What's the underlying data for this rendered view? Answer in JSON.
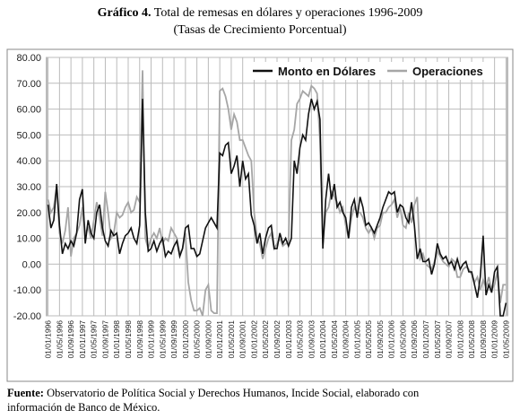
{
  "chart_data": {
    "type": "line",
    "title_prefix": "Gráfico 4.",
    "title": "Total de remesas en dólares y operaciones 1996-2009",
    "subtitle": "(Tasas de Crecimiento Porcentual)",
    "source_label": "Fuente:",
    "source": "Observatorio de Política Social y Derechos Humanos, Incide Social, elaborado con información de Banco de México.",
    "categories": [
      "01/01/1996",
      null,
      null,
      null,
      "01/05/1996",
      null,
      null,
      null,
      "01/09/1996",
      null,
      null,
      null,
      "01/01/1997",
      null,
      null,
      null,
      "01/05/1997",
      null,
      null,
      null,
      "01/09/1997",
      null,
      null,
      null,
      "01/01/1998",
      null,
      null,
      null,
      "01/05/1998",
      null,
      null,
      null,
      "01/09/1998",
      null,
      null,
      null,
      "01/01/1999",
      null,
      null,
      null,
      "01/05/1999",
      null,
      null,
      null,
      "01/09/1999",
      null,
      null,
      null,
      "01/01/2000",
      null,
      null,
      null,
      "01/05/2000",
      null,
      null,
      null,
      "01/09/2000",
      null,
      null,
      null,
      "01/01/2001",
      null,
      null,
      null,
      "01/05/2001",
      null,
      null,
      null,
      "01/09/2001",
      null,
      null,
      null,
      "01/01/2002",
      null,
      null,
      null,
      "01/05/2002",
      null,
      null,
      null,
      "01/09/2002",
      null,
      null,
      null,
      "01/01/2003",
      null,
      null,
      null,
      "01/05/2003",
      null,
      null,
      null,
      "01/09/2003",
      null,
      null,
      null,
      "01/01/2004",
      null,
      null,
      null,
      "01/05/2004",
      null,
      null,
      null,
      "01/09/2004",
      null,
      null,
      null,
      "01/01/2005",
      null,
      null,
      null,
      "01/05/2005",
      null,
      null,
      null,
      "01/09/2005",
      null,
      null,
      null,
      "01/01/2006",
      null,
      null,
      null,
      "01/05/2006",
      null,
      null,
      null,
      "01/09/2006",
      null,
      null,
      null,
      "01/01/2007",
      null,
      null,
      null,
      "01/05/2007",
      null,
      null,
      null,
      "01/09/2007",
      null,
      null,
      null,
      "01/01/2008",
      null,
      null,
      null,
      "01/05/2008",
      null,
      null,
      null,
      "01/09/2008",
      null,
      null,
      null,
      "01/01/2009",
      null,
      null,
      null,
      "01/05/2009"
    ],
    "series": [
      {
        "name": "Monto en Dólares",
        "color": "#111111",
        "values": [
          23,
          14,
          17,
          31,
          15,
          4,
          8,
          6,
          9,
          7,
          12,
          25,
          29,
          8,
          17,
          12,
          10,
          20,
          23,
          14,
          9,
          7,
          13,
          11,
          12,
          4,
          8,
          11,
          12,
          14,
          10,
          8,
          15,
          64,
          20,
          5,
          6,
          9,
          5,
          8,
          10,
          3,
          5,
          4,
          7,
          9,
          3,
          6,
          14,
          15,
          6,
          6,
          3,
          4,
          9,
          14,
          16,
          18,
          16,
          14,
          43,
          42,
          46,
          47,
          35,
          38,
          42,
          30,
          40,
          33,
          35,
          19,
          15,
          8,
          12,
          4,
          10,
          14,
          15,
          6,
          6,
          12,
          8,
          10,
          7,
          10,
          40,
          35,
          45,
          50,
          48,
          58,
          64,
          60,
          63,
          56,
          6,
          25,
          35,
          25,
          31,
          22,
          24,
          20,
          18,
          10,
          22,
          25,
          18,
          26,
          22,
          15,
          16,
          14,
          12,
          15,
          18,
          22,
          25,
          28,
          27,
          28,
          20,
          23,
          22,
          18,
          16,
          24,
          15,
          2,
          6,
          1,
          1,
          2,
          -4,
          0,
          8,
          4,
          2,
          3,
          0,
          1,
          -2,
          2,
          -2,
          0,
          1,
          -3,
          -3,
          -8,
          -13,
          -5,
          11,
          -12,
          -8,
          -11,
          -3,
          -1,
          -20,
          -20,
          -15
        ]
      },
      {
        "name": "Operaciones",
        "color": "#a6a6a6",
        "values": [
          25,
          20,
          22,
          30,
          12,
          8,
          13,
          22,
          3,
          10,
          12,
          15,
          22,
          12,
          14,
          10,
          17,
          24,
          18,
          11,
          28,
          20,
          10,
          12,
          20,
          18,
          19,
          22,
          24,
          20,
          21,
          26,
          24,
          75,
          10,
          6,
          10,
          12,
          10,
          14,
          8,
          10,
          9,
          14,
          12,
          10,
          4,
          6,
          12,
          -7,
          -14,
          -18,
          -18,
          -17,
          -20,
          -10,
          -8,
          -18,
          -19,
          -19,
          67,
          68,
          65,
          60,
          52,
          58,
          55,
          48,
          48,
          45,
          42,
          40,
          20,
          10,
          8,
          2,
          6,
          10,
          12,
          6,
          8,
          10,
          7,
          8,
          8,
          48,
          52,
          62,
          64,
          67,
          66,
          65,
          69,
          68,
          66,
          48,
          8,
          20,
          22,
          28,
          26,
          24,
          20,
          22,
          15,
          10,
          18,
          22,
          20,
          20,
          18,
          14,
          12,
          14,
          10,
          14,
          15,
          20,
          20,
          22,
          23,
          25,
          18,
          22,
          15,
          14,
          20,
          16,
          23,
          26,
          2,
          4,
          0,
          -1,
          -2,
          1,
          5,
          3,
          1,
          0,
          -1,
          2,
          1,
          -5,
          -5,
          -2,
          -1,
          -2,
          -4,
          -7,
          -5,
          -10,
          -6,
          -9,
          -5,
          -10,
          -8,
          -3,
          -15,
          -8,
          -8
        ]
      }
    ],
    "ylim": [
      -20,
      80
    ],
    "yticks": [
      {
        "value": -20,
        "label": "-20.00"
      },
      {
        "value": -10,
        "label": "-10.00"
      },
      {
        "value": 0,
        "label": "0.00"
      },
      {
        "value": 10,
        "label": "10.00"
      },
      {
        "value": 20,
        "label": "20.00"
      },
      {
        "value": 30,
        "label": "30.00"
      },
      {
        "value": 40,
        "label": "40.00"
      },
      {
        "value": 50,
        "label": "50.00"
      },
      {
        "value": 60,
        "label": "60.00"
      },
      {
        "value": 70,
        "label": "70.00"
      },
      {
        "value": 80,
        "label": "80.00"
      }
    ],
    "grid": true,
    "legend": "top-right"
  }
}
